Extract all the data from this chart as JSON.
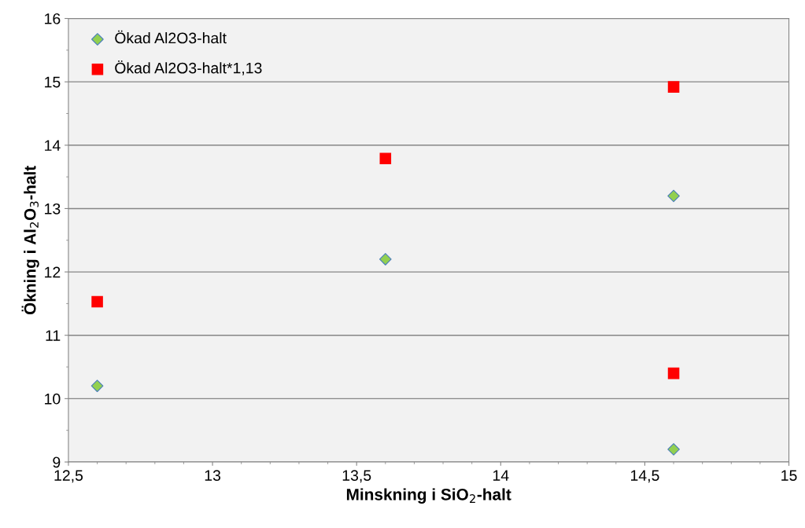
{
  "chart_data": {
    "type": "scatter",
    "xlabel": "Minskning i SiO$_{2}$-halt",
    "ylabel": "Ökning i Al$_{2}$O$_{3}$-halt",
    "series": [
      {
        "name": "Ökad Al2O3-halt",
        "color": "#92d050",
        "marker": "diamond",
        "x": [
          12.6,
          13.6,
          14.6,
          14.6
        ],
        "values": [
          10.2,
          12.2,
          13.2,
          9.2
        ]
      },
      {
        "name": "Ökad Al2O3-halt*1,13",
        "color": "#ff0000",
        "marker": "square",
        "x": [
          12.6,
          13.6,
          14.6,
          14.6
        ],
        "values": [
          11.53,
          13.79,
          14.92,
          10.4
        ]
      }
    ],
    "xlim": [
      12.5,
      15
    ],
    "xticks": [
      {
        "value": 12.5,
        "label": "12,5"
      },
      13,
      {
        "value": 13.5,
        "label": "13,5"
      },
      14,
      {
        "value": 14.5,
        "label": "14,5"
      },
      15
    ],
    "ylim": [
      9,
      16
    ],
    "yticks": [
      9,
      10,
      11,
      12,
      13,
      14,
      15,
      16
    ],
    "grid": "y",
    "legend": "top left"
  }
}
